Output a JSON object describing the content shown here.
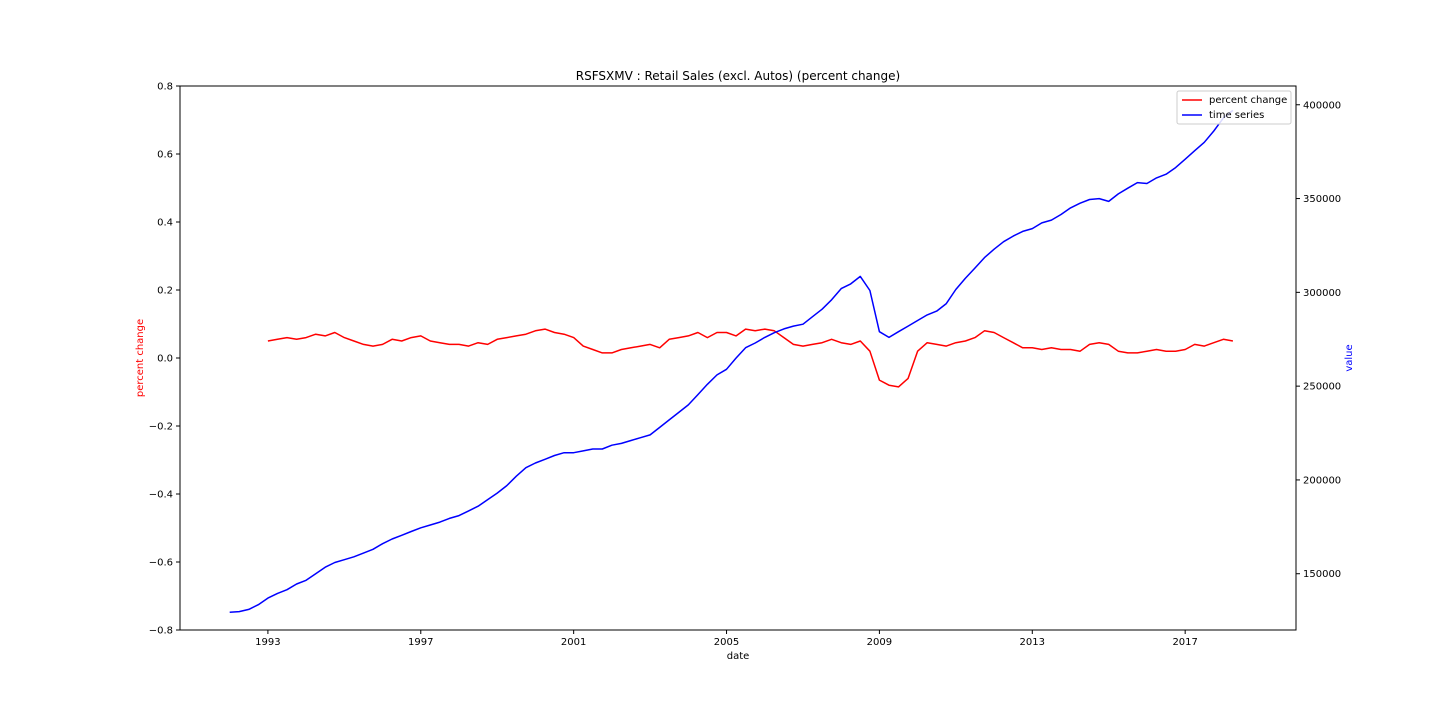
{
  "chart_data": {
    "type": "line",
    "title": "RSFSXMV :  Retail Sales (excl. Autos) (percent change)",
    "xlabel": "date",
    "ylabel_left": "percent change",
    "ylabel_right": "value",
    "xlim": [
      1990.7,
      2019.9
    ],
    "ylim_left": [
      -0.8,
      0.8
    ],
    "ylim_right": [
      120000,
      410000
    ],
    "x_ticks": [
      1993,
      1997,
      2001,
      2005,
      2009,
      2013,
      2017
    ],
    "x_tick_labels": [
      "1993",
      "1997",
      "2001",
      "2005",
      "2009",
      "2013",
      "2017"
    ],
    "y_left_ticks": [
      -0.8,
      -0.6,
      -0.4,
      -0.2,
      0.0,
      0.2,
      0.4,
      0.6,
      0.8
    ],
    "y_left_tick_labels": [
      "−0.8",
      "−0.6",
      "−0.4",
      "−0.2",
      "0.0",
      "0.2",
      "0.4",
      "0.6",
      "0.8"
    ],
    "y_right_ticks": [
      150000,
      200000,
      250000,
      300000,
      350000,
      400000
    ],
    "y_right_tick_labels": [
      "150000",
      "200000",
      "250000",
      "300000",
      "350000",
      "400000"
    ],
    "grid": false,
    "legend_position": "top-right",
    "colors": {
      "percent_change": "#ff0000",
      "time_series": "#0000ff",
      "left_axis_label": "#ff0000",
      "right_axis_label": "#0000ff"
    },
    "series": [
      {
        "name": "percent change",
        "axis": "left",
        "color": "#ff0000",
        "x": [
          1993.0,
          1993.25,
          1993.5,
          1993.75,
          1994.0,
          1994.25,
          1994.5,
          1994.75,
          1995.0,
          1995.25,
          1995.5,
          1995.75,
          1996.0,
          1996.25,
          1996.5,
          1996.75,
          1997.0,
          1997.25,
          1997.5,
          1997.75,
          1998.0,
          1998.25,
          1998.5,
          1998.75,
          1999.0,
          1999.25,
          1999.5,
          1999.75,
          2000.0,
          2000.25,
          2000.5,
          2000.75,
          2001.0,
          2001.25,
          2001.5,
          2001.75,
          2002.0,
          2002.25,
          2002.5,
          2002.75,
          2003.0,
          2003.25,
          2003.5,
          2003.75,
          2004.0,
          2004.25,
          2004.5,
          2004.75,
          2005.0,
          2005.25,
          2005.5,
          2005.75,
          2006.0,
          2006.25,
          2006.5,
          2006.75,
          2007.0,
          2007.25,
          2007.5,
          2007.75,
          2008.0,
          2008.25,
          2008.5,
          2008.75,
          2009.0,
          2009.25,
          2009.5,
          2009.75,
          2010.0,
          2010.25,
          2010.5,
          2010.75,
          2011.0,
          2011.25,
          2011.5,
          2011.75,
          2012.0,
          2012.25,
          2012.5,
          2012.75,
          2013.0,
          2013.25,
          2013.5,
          2013.75,
          2014.0,
          2014.25,
          2014.5,
          2014.75,
          2015.0,
          2015.25,
          2015.5,
          2015.75,
          2016.0,
          2016.25,
          2016.5,
          2016.75,
          2017.0,
          2017.25,
          2017.5,
          2017.75,
          2018.0,
          2018.25
        ],
        "values": [
          0.05,
          0.055,
          0.06,
          0.055,
          0.06,
          0.07,
          0.065,
          0.075,
          0.06,
          0.05,
          0.04,
          0.035,
          0.04,
          0.055,
          0.05,
          0.06,
          0.065,
          0.05,
          0.045,
          0.04,
          0.04,
          0.035,
          0.045,
          0.04,
          0.055,
          0.06,
          0.065,
          0.07,
          0.08,
          0.085,
          0.075,
          0.07,
          0.06,
          0.035,
          0.025,
          0.015,
          0.015,
          0.025,
          0.03,
          0.035,
          0.04,
          0.03,
          0.055,
          0.06,
          0.065,
          0.075,
          0.06,
          0.075,
          0.075,
          0.065,
          0.085,
          0.08,
          0.085,
          0.08,
          0.06,
          0.04,
          0.035,
          0.04,
          0.045,
          0.055,
          0.045,
          0.04,
          0.05,
          0.02,
          -0.065,
          -0.08,
          -0.085,
          -0.06,
          0.02,
          0.045,
          0.04,
          0.035,
          0.045,
          0.05,
          0.06,
          0.08,
          0.075,
          0.06,
          0.045,
          0.03,
          0.03,
          0.025,
          0.03,
          0.025,
          0.025,
          0.02,
          0.04,
          0.045,
          0.04,
          0.02,
          0.015,
          0.015,
          0.02,
          0.025,
          0.02,
          0.02,
          0.025,
          0.04,
          0.035,
          0.045,
          0.055,
          0.05
        ]
      },
      {
        "name": "time series",
        "axis": "right",
        "color": "#0000ff",
        "x": [
          1992.0,
          1992.25,
          1992.5,
          1992.75,
          1993.0,
          1993.25,
          1993.5,
          1993.75,
          1994.0,
          1994.25,
          1994.5,
          1994.75,
          1995.0,
          1995.25,
          1995.5,
          1995.75,
          1996.0,
          1996.25,
          1996.5,
          1996.75,
          1997.0,
          1997.25,
          1997.5,
          1997.75,
          1998.0,
          1998.25,
          1998.5,
          1998.75,
          1999.0,
          1999.25,
          1999.5,
          1999.75,
          2000.0,
          2000.25,
          2000.5,
          2000.75,
          2001.0,
          2001.25,
          2001.5,
          2001.75,
          2002.0,
          2002.25,
          2002.5,
          2002.75,
          2003.0,
          2003.25,
          2003.5,
          2003.75,
          2004.0,
          2004.25,
          2004.5,
          2004.75,
          2005.0,
          2005.25,
          2005.5,
          2005.75,
          2006.0,
          2006.25,
          2006.5,
          2006.75,
          2007.0,
          2007.25,
          2007.5,
          2007.75,
          2008.0,
          2008.25,
          2008.5,
          2008.75,
          2009.0,
          2009.25,
          2009.5,
          2009.75,
          2010.0,
          2010.25,
          2010.5,
          2010.75,
          2011.0,
          2011.25,
          2011.5,
          2011.75,
          2012.0,
          2012.25,
          2012.5,
          2012.75,
          2013.0,
          2013.25,
          2013.5,
          2013.75,
          2014.0,
          2014.25,
          2014.5,
          2014.75,
          2015.0,
          2015.25,
          2015.5,
          2015.75,
          2016.0,
          2016.25,
          2016.5,
          2016.75,
          2017.0,
          2017.25,
          2017.5,
          2017.75,
          2018.0,
          2018.25
        ],
        "values": [
          129500,
          129800,
          131000,
          133500,
          137000,
          139500,
          141500,
          144500,
          146500,
          150000,
          153500,
          156000,
          157500,
          159000,
          161000,
          163000,
          166000,
          168500,
          170500,
          172500,
          174500,
          176000,
          177500,
          179500,
          181000,
          183500,
          186000,
          189500,
          193000,
          197000,
          202000,
          206500,
          209000,
          211000,
          213000,
          214500,
          214500,
          215500,
          216500,
          216500,
          218500,
          219500,
          221000,
          222500,
          224000,
          228000,
          232000,
          236000,
          240000,
          245500,
          251000,
          256000,
          259000,
          265000,
          270500,
          273000,
          276000,
          278500,
          280500,
          282000,
          283000,
          287000,
          291000,
          296000,
          302000,
          304500,
          308500,
          301000,
          279000,
          276000,
          279000,
          282000,
          285000,
          288000,
          290000,
          294000,
          301500,
          307500,
          313000,
          318500,
          323000,
          327000,
          330000,
          332500,
          334000,
          337000,
          338500,
          341500,
          345000,
          347500,
          349500,
          350000,
          348500,
          352500,
          355500,
          358500,
          358000,
          361000,
          363000,
          366500,
          371000,
          375500,
          380000,
          386000,
          393000,
          397000
        ]
      }
    ]
  }
}
